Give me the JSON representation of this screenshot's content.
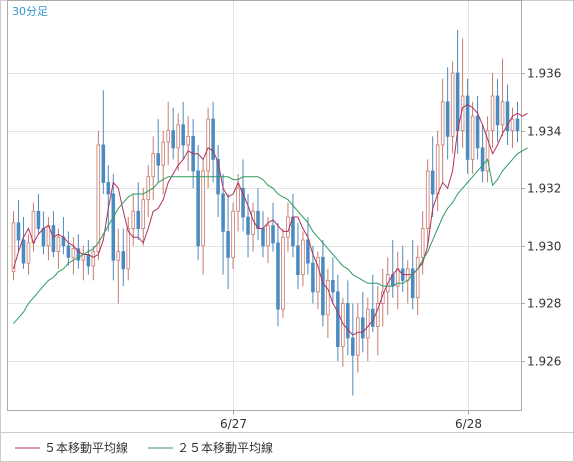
{
  "period_label": "30分足",
  "legend": [
    {
      "label": "５本移動平均線",
      "color": "#b0305a"
    },
    {
      "label": "２５本移動平均線",
      "color": "#2e9a5e"
    }
  ],
  "colors": {
    "up": "#c87a6e",
    "down": "#4b8bc0",
    "grid": "#e4e4e4",
    "axis": "#aaaaaa"
  },
  "chart_data": {
    "type": "candlestick",
    "y_ticks": [
      "1.926",
      "1.928",
      "1.930",
      "1.932",
      "1.934",
      "1.936"
    ],
    "x_ticks": [
      "6/27",
      "6/28"
    ],
    "ylim": [
      1.9243,
      1.9385
    ],
    "x_tick_index": [
      44,
      91
    ],
    "series": [
      {
        "name": "５本移動平均線",
        "values": [
          1.9292,
          1.9298,
          1.9303,
          1.9306,
          1.9301,
          1.9304,
          1.9306,
          1.9307,
          1.9303,
          1.9304,
          1.9303,
          1.9301,
          1.93,
          1.9298,
          1.9297,
          1.9297,
          1.9296,
          1.9297,
          1.9302,
          1.9313,
          1.9322,
          1.932,
          1.9312,
          1.9305,
          1.9303,
          1.9303,
          1.9301,
          1.9306,
          1.9312,
          1.9313,
          1.9316,
          1.9322,
          1.9325,
          1.9328,
          1.933,
          1.9333,
          1.9332,
          1.9332,
          1.933,
          1.9334,
          1.9333,
          1.9329,
          1.932,
          1.9317,
          1.9318,
          1.9322,
          1.9318,
          1.9314,
          1.9309,
          1.9306,
          1.9306,
          1.9308,
          1.9309,
          1.9307,
          1.9305,
          1.9305,
          1.931,
          1.931,
          1.9306,
          1.9303,
          1.9297,
          1.9293,
          1.9287,
          1.9285,
          1.928,
          1.9277,
          1.9273,
          1.9271,
          1.9269,
          1.927,
          1.927,
          1.9272,
          1.9274,
          1.9278,
          1.9283,
          1.9287,
          1.929,
          1.9292,
          1.929,
          1.929,
          1.929,
          1.9292,
          1.9294,
          1.93,
          1.9313,
          1.9318,
          1.9322,
          1.932,
          1.9326,
          1.934,
          1.9348,
          1.9349,
          1.9348,
          1.9346,
          1.9342,
          1.9337,
          1.9332,
          1.9335,
          1.9339,
          1.9342,
          1.9345,
          1.9346,
          1.9345,
          1.9346
        ]
      },
      {
        "name": "２５本移動平均線",
        "values": [
          1.9273,
          1.9275,
          1.9277,
          1.928,
          1.9282,
          1.9284,
          1.9286,
          1.9288,
          1.9289,
          1.9291,
          1.9292,
          1.9294,
          1.9295,
          1.9296,
          1.9297,
          1.9298,
          1.9299,
          1.9301,
          1.9304,
          1.9307,
          1.931,
          1.9313,
          1.9315,
          1.9317,
          1.9318,
          1.9318,
          1.9318,
          1.9319,
          1.932,
          1.9322,
          1.9323,
          1.9324,
          1.9324,
          1.9324,
          1.9324,
          1.9324,
          1.9324,
          1.9324,
          1.9324,
          1.9324,
          1.9324,
          1.9324,
          1.9324,
          1.9324,
          1.9323,
          1.9323,
          1.9324,
          1.9324,
          1.9324,
          1.9324,
          1.9323,
          1.9321,
          1.932,
          1.9318,
          1.9317,
          1.9316,
          1.9314,
          1.9312,
          1.931,
          1.9308,
          1.9305,
          1.9303,
          1.9301,
          1.9299,
          1.9297,
          1.9295,
          1.9293,
          1.9292,
          1.929,
          1.9289,
          1.9288,
          1.9287,
          1.9287,
          1.9287,
          1.9286,
          1.9286,
          1.9286,
          1.9287,
          1.9287,
          1.9288,
          1.929,
          1.9292,
          1.9295,
          1.9298,
          1.9302,
          1.9306,
          1.931,
          1.9313,
          1.9315,
          1.9318,
          1.932,
          1.9322,
          1.9324,
          1.9326,
          1.9328,
          1.933,
          1.9321,
          1.9323,
          1.9326,
          1.9328,
          1.933,
          1.9332,
          1.9333,
          1.9334
        ]
      }
    ],
    "candles": [
      [
        1.9291,
        1.9312,
        1.9288,
        1.9308
      ],
      [
        1.9308,
        1.9316,
        1.9298,
        1.9302
      ],
      [
        1.9302,
        1.931,
        1.9292,
        1.9294
      ],
      [
        1.9294,
        1.9304,
        1.929,
        1.9301
      ],
      [
        1.9301,
        1.9315,
        1.9298,
        1.9312
      ],
      [
        1.9312,
        1.9318,
        1.9304,
        1.9306
      ],
      [
        1.9306,
        1.9312,
        1.9297,
        1.93
      ],
      [
        1.93,
        1.931,
        1.9295,
        1.9307
      ],
      [
        1.9307,
        1.9312,
        1.9296,
        1.9298
      ],
      [
        1.9298,
        1.9306,
        1.9292,
        1.9303
      ],
      [
        1.9303,
        1.931,
        1.9297,
        1.93
      ],
      [
        1.93,
        1.9305,
        1.9293,
        1.9296
      ],
      [
        1.9296,
        1.9303,
        1.929,
        1.9299
      ],
      [
        1.9299,
        1.9304,
        1.9292,
        1.9295
      ],
      [
        1.9295,
        1.93,
        1.9288,
        1.9297
      ],
      [
        1.9297,
        1.9302,
        1.929,
        1.9293
      ],
      [
        1.9293,
        1.93,
        1.9288,
        1.9298
      ],
      [
        1.9298,
        1.934,
        1.9295,
        1.9335
      ],
      [
        1.9335,
        1.9354,
        1.9318,
        1.9322
      ],
      [
        1.9322,
        1.9328,
        1.9305,
        1.9318
      ],
      [
        1.9318,
        1.9325,
        1.9288,
        1.9295
      ],
      [
        1.9295,
        1.9306,
        1.928,
        1.9298
      ],
      [
        1.9298,
        1.9306,
        1.9286,
        1.9292
      ],
      [
        1.9292,
        1.931,
        1.9288,
        1.9306
      ],
      [
        1.9306,
        1.9318,
        1.93,
        1.9312
      ],
      [
        1.9312,
        1.9322,
        1.9302,
        1.9306
      ],
      [
        1.9306,
        1.932,
        1.93,
        1.9316
      ],
      [
        1.9316,
        1.9328,
        1.931,
        1.9324
      ],
      [
        1.9324,
        1.9338,
        1.9316,
        1.9332
      ],
      [
        1.9332,
        1.9344,
        1.9322,
        1.9328
      ],
      [
        1.9328,
        1.934,
        1.9318,
        1.9336
      ],
      [
        1.9336,
        1.935,
        1.9328,
        1.934
      ],
      [
        1.934,
        1.9348,
        1.933,
        1.9334
      ],
      [
        1.9334,
        1.9346,
        1.9326,
        1.9342
      ],
      [
        1.9342,
        1.935,
        1.933,
        1.9335
      ],
      [
        1.9335,
        1.9345,
        1.9326,
        1.9338
      ],
      [
        1.9338,
        1.9344,
        1.932,
        1.9326
      ],
      [
        1.9326,
        1.9335,
        1.9295,
        1.93
      ],
      [
        1.93,
        1.933,
        1.929,
        1.9326
      ],
      [
        1.9326,
        1.9348,
        1.932,
        1.9344
      ],
      [
        1.9344,
        1.935,
        1.9322,
        1.933
      ],
      [
        1.933,
        1.9335,
        1.931,
        1.9318
      ],
      [
        1.9318,
        1.9325,
        1.929,
        1.9305
      ],
      [
        1.9305,
        1.9318,
        1.9285,
        1.9296
      ],
      [
        1.9296,
        1.9315,
        1.9292,
        1.9312
      ],
      [
        1.9312,
        1.9325,
        1.9305,
        1.932
      ],
      [
        1.932,
        1.933,
        1.9305,
        1.931
      ],
      [
        1.931,
        1.9318,
        1.9296,
        1.9304
      ],
      [
        1.9304,
        1.9315,
        1.9298,
        1.9312
      ],
      [
        1.9312,
        1.932,
        1.9302,
        1.9306
      ],
      [
        1.9306,
        1.9312,
        1.9296,
        1.93
      ],
      [
        1.93,
        1.931,
        1.9294,
        1.9307
      ],
      [
        1.9307,
        1.9315,
        1.9298,
        1.9301
      ],
      [
        1.9301,
        1.9308,
        1.9272,
        1.9278
      ],
      [
        1.9278,
        1.9306,
        1.9275,
        1.9303
      ],
      [
        1.9303,
        1.9315,
        1.9298,
        1.931
      ],
      [
        1.931,
        1.9318,
        1.9296,
        1.93
      ],
      [
        1.93,
        1.9308,
        1.9285,
        1.929
      ],
      [
        1.929,
        1.9305,
        1.9286,
        1.9302
      ],
      [
        1.9302,
        1.931,
        1.929,
        1.9294
      ],
      [
        1.9294,
        1.93,
        1.928,
        1.9284
      ],
      [
        1.9284,
        1.9298,
        1.9278,
        1.9296
      ],
      [
        1.9296,
        1.9302,
        1.9272,
        1.9276
      ],
      [
        1.9276,
        1.9292,
        1.9268,
        1.9288
      ],
      [
        1.9288,
        1.9296,
        1.928,
        1.9284
      ],
      [
        1.9284,
        1.929,
        1.926,
        1.9265
      ],
      [
        1.9265,
        1.9282,
        1.9258,
        1.928
      ],
      [
        1.928,
        1.9288,
        1.9262,
        1.9268
      ],
      [
        1.9268,
        1.928,
        1.9248,
        1.9262
      ],
      [
        1.9262,
        1.928,
        1.9256,
        1.9275
      ],
      [
        1.9275,
        1.9284,
        1.9263,
        1.9268
      ],
      [
        1.9268,
        1.9282,
        1.926,
        1.9278
      ],
      [
        1.9278,
        1.929,
        1.927,
        1.9272
      ],
      [
        1.9272,
        1.9286,
        1.9262,
        1.928
      ],
      [
        1.928,
        1.9292,
        1.9272,
        1.9284
      ],
      [
        1.9284,
        1.9296,
        1.9276,
        1.929
      ],
      [
        1.929,
        1.9302,
        1.9282,
        1.9286
      ],
      [
        1.9286,
        1.9298,
        1.9278,
        1.9292
      ],
      [
        1.9292,
        1.93,
        1.9284,
        1.9288
      ],
      [
        1.9288,
        1.9295,
        1.928,
        1.9292
      ],
      [
        1.9292,
        1.9302,
        1.9278,
        1.9282
      ],
      [
        1.9282,
        1.93,
        1.9276,
        1.9296
      ],
      [
        1.9296,
        1.9312,
        1.929,
        1.9306
      ],
      [
        1.9306,
        1.933,
        1.93,
        1.9326
      ],
      [
        1.9326,
        1.9338,
        1.931,
        1.9318
      ],
      [
        1.9318,
        1.934,
        1.9312,
        1.9335
      ],
      [
        1.9335,
        1.9358,
        1.9322,
        1.935
      ],
      [
        1.935,
        1.9362,
        1.933,
        1.9338
      ],
      [
        1.9338,
        1.9364,
        1.9332,
        1.936
      ],
      [
        1.936,
        1.9375,
        1.9332,
        1.934
      ],
      [
        1.934,
        1.9372,
        1.9334,
        1.9352
      ],
      [
        1.9352,
        1.9358,
        1.9325,
        1.933
      ],
      [
        1.933,
        1.935,
        1.9325,
        1.9345
      ],
      [
        1.9345,
        1.9352,
        1.933,
        1.9334
      ],
      [
        1.9334,
        1.9342,
        1.9322,
        1.9326
      ],
      [
        1.9326,
        1.9345,
        1.9322,
        1.934
      ],
      [
        1.934,
        1.936,
        1.9334,
        1.9352
      ],
      [
        1.9352,
        1.9358,
        1.9336,
        1.9342
      ],
      [
        1.9342,
        1.9365,
        1.9338,
        1.935
      ],
      [
        1.935,
        1.9356,
        1.9335,
        1.934
      ],
      [
        1.934,
        1.9348,
        1.9334,
        1.9344
      ],
      [
        1.9344,
        1.935,
        1.9336,
        1.934
      ]
    ]
  }
}
